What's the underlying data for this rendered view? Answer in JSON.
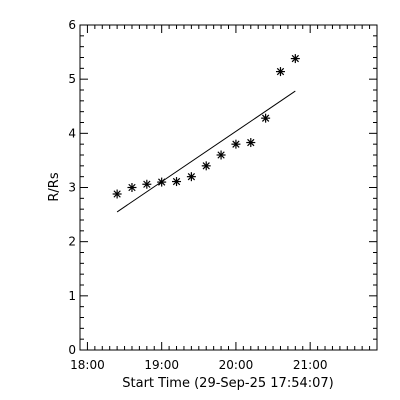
{
  "chart_data": {
    "type": "scatter",
    "xlabel": "Start Time (29-Sep-25 17:54:07)",
    "ylabel": "R/Rs",
    "xlim": [
      "17:54",
      "21:54"
    ],
    "ylim": [
      0,
      6
    ],
    "xticks": [
      "18:00",
      "19:00",
      "20:00",
      "21:00"
    ],
    "yticks": [
      "0",
      "1",
      "2",
      "3",
      "4",
      "5",
      "6"
    ],
    "grid": false,
    "series": [
      {
        "kind": "points",
        "marker": "asterisk",
        "x": [
          "18:24",
          "18:36",
          "18:48",
          "19:00",
          "19:12",
          "19:24",
          "19:36",
          "19:48",
          "20:00",
          "20:12",
          "20:24",
          "20:36",
          "20:48"
        ],
        "y": [
          2.88,
          3.0,
          3.06,
          3.1,
          3.11,
          3.2,
          3.4,
          3.6,
          3.8,
          3.83,
          4.28,
          5.14,
          5.38
        ]
      },
      {
        "kind": "fit-line",
        "x": [
          "18:24",
          "20:48"
        ],
        "y": [
          2.55,
          4.78
        ]
      }
    ]
  }
}
